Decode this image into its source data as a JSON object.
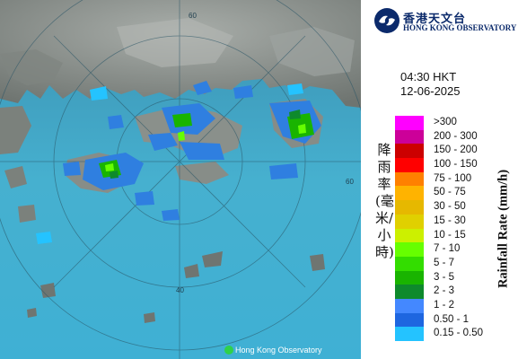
{
  "logo": {
    "name_cn": "香港天文台",
    "name_en": "HONG KONG OBSERVATORY"
  },
  "timestamp": {
    "time": "04:30 HKT",
    "date": "12-06-2025"
  },
  "legend": {
    "title_cn": "降雨率(毫米/小時)",
    "title_en": "Rainfall Rate (mm/h)",
    "items": [
      {
        "label": ">300",
        "color": "#ff00ff"
      },
      {
        "label": "200 - 300",
        "color": "#cc0099"
      },
      {
        "label": "150 - 200",
        "color": "#cc0000"
      },
      {
        "label": "100 - 150",
        "color": "#ff0000"
      },
      {
        "label": "75 - 100",
        "color": "#ff8000"
      },
      {
        "label": "50 - 75",
        "color": "#ffb300"
      },
      {
        "label": "30 - 50",
        "color": "#e6b800"
      },
      {
        "label": "15 - 30",
        "color": "#e0d000"
      },
      {
        "label": "10 - 15",
        "color": "#ccf000"
      },
      {
        "label": "7 - 10",
        "color": "#66ff00"
      },
      {
        "label": "5 - 7",
        "color": "#33dd00"
      },
      {
        "label": "3 - 5",
        "color": "#19b400"
      },
      {
        "label": "2 - 3",
        "color": "#0e8a2c"
      },
      {
        "label": "1 - 2",
        "color": "#4488ff"
      },
      {
        "label": "0.50 - 1",
        "color": "#1e66e0"
      },
      {
        "label": "0.15 - 0.50",
        "color": "#24c3ff"
      }
    ]
  },
  "map": {
    "credit": "Hong Kong Observatory",
    "range_labels": [
      "60",
      "60",
      "40"
    ],
    "colors": {
      "sea": "#3fa7c9",
      "land": "#8f9590",
      "rain_light": "#2f7fe0"
    }
  }
}
